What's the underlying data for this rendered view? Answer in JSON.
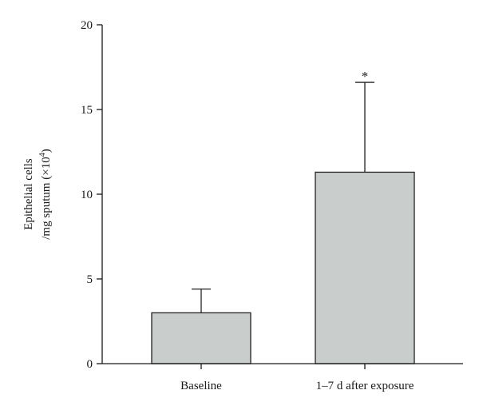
{
  "chart_data": {
    "type": "bar",
    "categories": [
      "Baseline",
      "1–7 d after exposure"
    ],
    "values": [
      3.0,
      11.3
    ],
    "error_upper": [
      4.4,
      16.6
    ],
    "significance": [
      "",
      "*"
    ],
    "ylabel_line1": "Epithelial cells",
    "ylabel_line2": "/mg sputum (×10",
    "ylabel_sup": "4",
    "ylabel_close": ")",
    "ylim": [
      0,
      20
    ],
    "yticks": [
      0,
      5,
      10,
      15,
      20
    ],
    "xlabel": "",
    "title": "",
    "grid": false,
    "bar_color": "#c9cdcb"
  }
}
